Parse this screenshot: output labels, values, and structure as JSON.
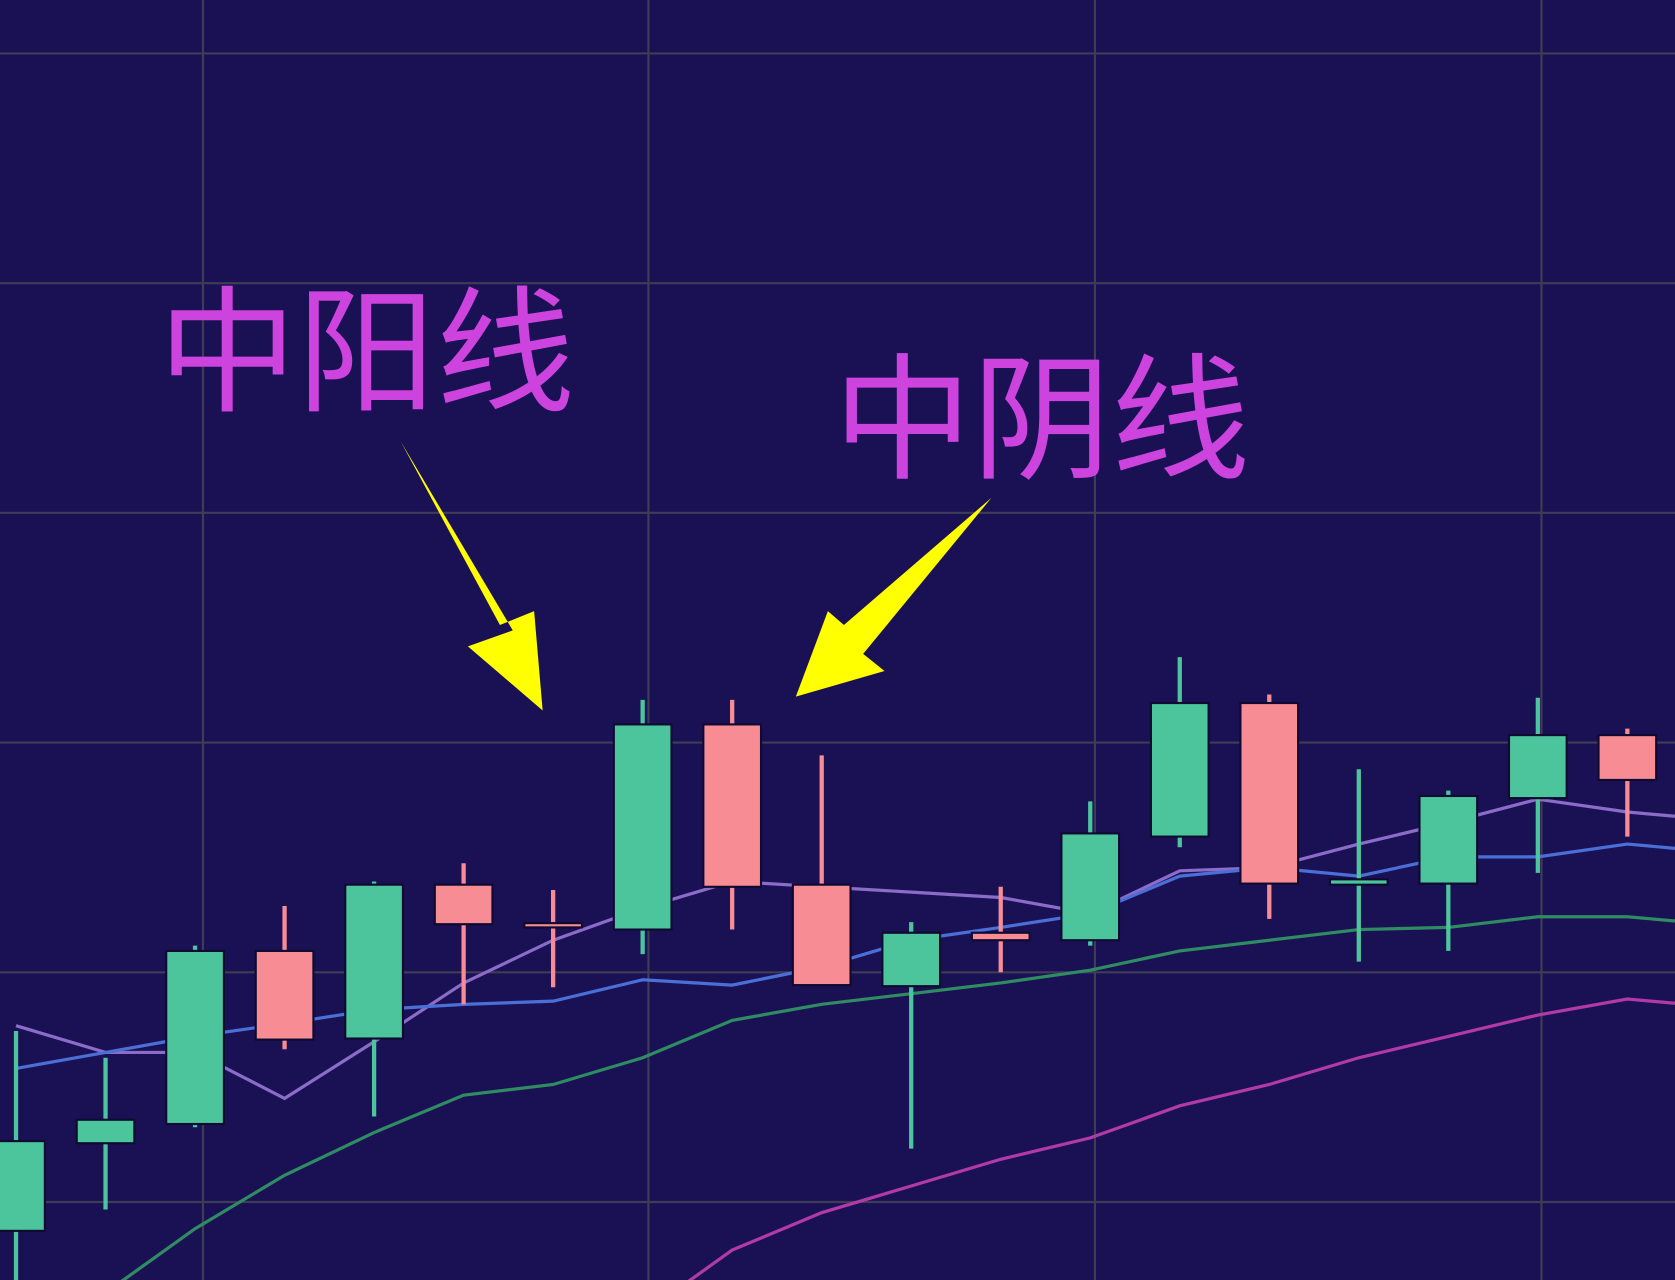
{
  "chart_data": {
    "type": "candlestick",
    "title": "",
    "xlabel": "",
    "ylabel": "",
    "grid": true,
    "background_color": "#1a1155",
    "grid_color": "#3f3c55",
    "up_color": "#4cc59c",
    "down_color": "#f78c94",
    "candles": [
      {
        "open": 4.8,
        "high": 23.5,
        "low": 0.0,
        "close": 13.2
      },
      {
        "open": 13.0,
        "high": 21.0,
        "low": 6.8,
        "close": 15.2
      },
      {
        "open": 14.8,
        "high": 31.5,
        "low": 14.5,
        "close": 31.0
      },
      {
        "open": 31.0,
        "high": 35.2,
        "low": 21.8,
        "close": 22.7
      },
      {
        "open": 22.8,
        "high": 37.5,
        "low": 15.5,
        "close": 37.2
      },
      {
        "open": 37.2,
        "high": 39.2,
        "low": 26.0,
        "close": 33.5
      },
      {
        "open": 33.6,
        "high": 36.7,
        "low": 27.6,
        "close": 33.2
      },
      {
        "open": 33.0,
        "high": 54.5,
        "low": 30.7,
        "close": 52.2
      },
      {
        "open": 52.2,
        "high": 54.5,
        "low": 33.0,
        "close": 37.0
      },
      {
        "open": 37.2,
        "high": 49.3,
        "low": 27.8,
        "close": 27.8
      },
      {
        "open": 27.7,
        "high": 33.7,
        "low": 12.5,
        "close": 32.7
      },
      {
        "open": 32.7,
        "high": 37.0,
        "low": 29.0,
        "close": 32.0
      },
      {
        "open": 32.0,
        "high": 45.0,
        "low": 31.5,
        "close": 42.0
      },
      {
        "open": 41.7,
        "high": 58.5,
        "low": 40.7,
        "close": 54.2
      },
      {
        "open": 54.2,
        "high": 55.0,
        "low": 34.0,
        "close": 37.3
      },
      {
        "open": 37.2,
        "high": 48.0,
        "low": 30.0,
        "close": 37.7
      },
      {
        "open": 37.3,
        "high": 46.0,
        "low": 31.0,
        "close": 45.5
      },
      {
        "open": 45.3,
        "high": 54.7,
        "low": 38.3,
        "close": 51.2
      },
      {
        "open": 51.2,
        "high": 51.8,
        "low": 41.7,
        "close": 47.0
      }
    ],
    "moving_averages": [
      {
        "color": "#8b6cc8",
        "values": [
          24.0,
          21.5,
          21.5,
          17.2,
          22.5,
          28.0,
          32.0,
          35.0,
          37.5,
          37.0,
          36.5,
          36.0,
          34.5,
          38.5,
          38.8,
          41.0,
          43.0,
          45.2,
          44.0
        ]
      },
      {
        "color": "#4a6fd6",
        "values": [
          20.0,
          21.5,
          23.0,
          24.2,
          25.5,
          26.0,
          26.3,
          28.3,
          27.8,
          29.5,
          32.0,
          33.2,
          34.5,
          38.0,
          38.8,
          38.0,
          39.8,
          39.8,
          41.0
        ]
      },
      {
        "color": "#2f8c62",
        "values": [
          null,
          -1.0,
          5.0,
          10.0,
          14.0,
          17.5,
          18.5,
          21.0,
          24.5,
          26.0,
          27.0,
          28.0,
          29.2,
          31.0,
          32.0,
          33.0,
          33.2,
          34.2,
          34.2
        ]
      },
      {
        "color": "#b23aa8",
        "values": [
          null,
          null,
          null,
          null,
          null,
          null,
          null,
          -3.0,
          3.0,
          6.5,
          9.0,
          11.5,
          13.5,
          16.5,
          18.5,
          21.0,
          23.0,
          25.0,
          26.5
        ]
      }
    ],
    "annotations": [
      {
        "text": "中阳线",
        "color": "#cc44dd",
        "arrow_color": "#ffff00",
        "points_to_candle": 8
      },
      {
        "text": "中阴线",
        "color": "#cc44dd",
        "arrow_color": "#ffff00",
        "points_to_candle": 9
      }
    ]
  }
}
